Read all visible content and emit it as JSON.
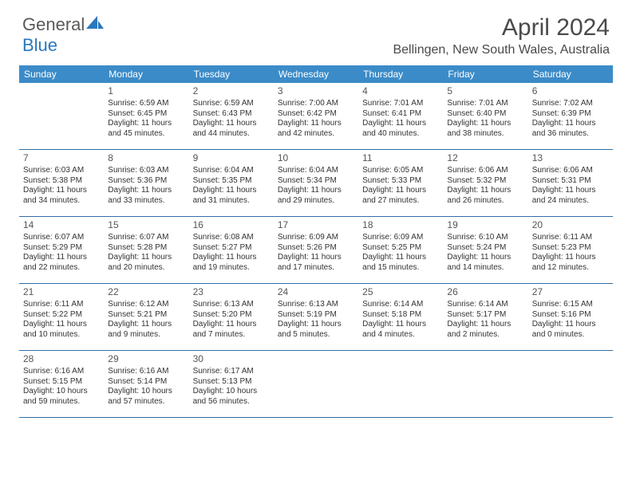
{
  "logo": {
    "text_general": "General",
    "text_blue": "Blue"
  },
  "title": "April 2024",
  "location": "Bellingen, New South Wales, Australia",
  "colors": {
    "header_bg": "#3b8bc8",
    "header_text": "#ffffff",
    "border": "#2f6fa8",
    "body_text": "#333333",
    "title_text": "#4a4a4a",
    "logo_gray": "#5a5a5a",
    "logo_blue": "#2a78bd"
  },
  "day_headers": [
    "Sunday",
    "Monday",
    "Tuesday",
    "Wednesday",
    "Thursday",
    "Friday",
    "Saturday"
  ],
  "start_offset": 1,
  "days": [
    {
      "n": 1,
      "sr": "6:59 AM",
      "ss": "6:45 PM",
      "dl": "11 hours and 45 minutes."
    },
    {
      "n": 2,
      "sr": "6:59 AM",
      "ss": "6:43 PM",
      "dl": "11 hours and 44 minutes."
    },
    {
      "n": 3,
      "sr": "7:00 AM",
      "ss": "6:42 PM",
      "dl": "11 hours and 42 minutes."
    },
    {
      "n": 4,
      "sr": "7:01 AM",
      "ss": "6:41 PM",
      "dl": "11 hours and 40 minutes."
    },
    {
      "n": 5,
      "sr": "7:01 AM",
      "ss": "6:40 PM",
      "dl": "11 hours and 38 minutes."
    },
    {
      "n": 6,
      "sr": "7:02 AM",
      "ss": "6:39 PM",
      "dl": "11 hours and 36 minutes."
    },
    {
      "n": 7,
      "sr": "6:03 AM",
      "ss": "5:38 PM",
      "dl": "11 hours and 34 minutes."
    },
    {
      "n": 8,
      "sr": "6:03 AM",
      "ss": "5:36 PM",
      "dl": "11 hours and 33 minutes."
    },
    {
      "n": 9,
      "sr": "6:04 AM",
      "ss": "5:35 PM",
      "dl": "11 hours and 31 minutes."
    },
    {
      "n": 10,
      "sr": "6:04 AM",
      "ss": "5:34 PM",
      "dl": "11 hours and 29 minutes."
    },
    {
      "n": 11,
      "sr": "6:05 AM",
      "ss": "5:33 PM",
      "dl": "11 hours and 27 minutes."
    },
    {
      "n": 12,
      "sr": "6:06 AM",
      "ss": "5:32 PM",
      "dl": "11 hours and 26 minutes."
    },
    {
      "n": 13,
      "sr": "6:06 AM",
      "ss": "5:31 PM",
      "dl": "11 hours and 24 minutes."
    },
    {
      "n": 14,
      "sr": "6:07 AM",
      "ss": "5:29 PM",
      "dl": "11 hours and 22 minutes."
    },
    {
      "n": 15,
      "sr": "6:07 AM",
      "ss": "5:28 PM",
      "dl": "11 hours and 20 minutes."
    },
    {
      "n": 16,
      "sr": "6:08 AM",
      "ss": "5:27 PM",
      "dl": "11 hours and 19 minutes."
    },
    {
      "n": 17,
      "sr": "6:09 AM",
      "ss": "5:26 PM",
      "dl": "11 hours and 17 minutes."
    },
    {
      "n": 18,
      "sr": "6:09 AM",
      "ss": "5:25 PM",
      "dl": "11 hours and 15 minutes."
    },
    {
      "n": 19,
      "sr": "6:10 AM",
      "ss": "5:24 PM",
      "dl": "11 hours and 14 minutes."
    },
    {
      "n": 20,
      "sr": "6:11 AM",
      "ss": "5:23 PM",
      "dl": "11 hours and 12 minutes."
    },
    {
      "n": 21,
      "sr": "6:11 AM",
      "ss": "5:22 PM",
      "dl": "11 hours and 10 minutes."
    },
    {
      "n": 22,
      "sr": "6:12 AM",
      "ss": "5:21 PM",
      "dl": "11 hours and 9 minutes."
    },
    {
      "n": 23,
      "sr": "6:13 AM",
      "ss": "5:20 PM",
      "dl": "11 hours and 7 minutes."
    },
    {
      "n": 24,
      "sr": "6:13 AM",
      "ss": "5:19 PM",
      "dl": "11 hours and 5 minutes."
    },
    {
      "n": 25,
      "sr": "6:14 AM",
      "ss": "5:18 PM",
      "dl": "11 hours and 4 minutes."
    },
    {
      "n": 26,
      "sr": "6:14 AM",
      "ss": "5:17 PM",
      "dl": "11 hours and 2 minutes."
    },
    {
      "n": 27,
      "sr": "6:15 AM",
      "ss": "5:16 PM",
      "dl": "11 hours and 0 minutes."
    },
    {
      "n": 28,
      "sr": "6:16 AM",
      "ss": "5:15 PM",
      "dl": "10 hours and 59 minutes."
    },
    {
      "n": 29,
      "sr": "6:16 AM",
      "ss": "5:14 PM",
      "dl": "10 hours and 57 minutes."
    },
    {
      "n": 30,
      "sr": "6:17 AM",
      "ss": "5:13 PM",
      "dl": "10 hours and 56 minutes."
    }
  ],
  "labels": {
    "sunrise": "Sunrise:",
    "sunset": "Sunset:",
    "daylight": "Daylight:"
  }
}
